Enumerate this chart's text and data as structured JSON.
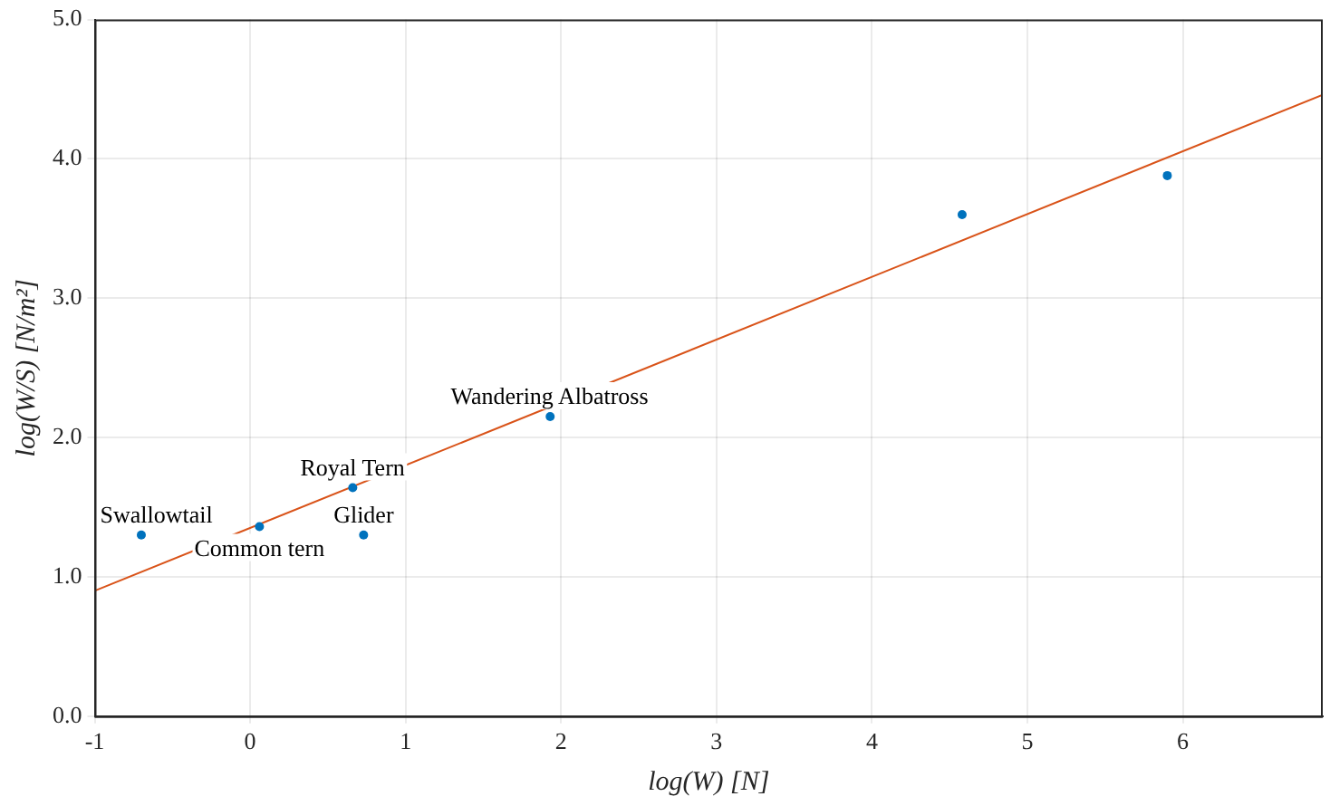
{
  "chart_data": {
    "type": "scatter",
    "xlabel": "log(W) [N]",
    "ylabel": "log(W/S) [N/m²]",
    "xlim": [
      -1,
      6.9
    ],
    "ylim": [
      0,
      5
    ],
    "xticks": [
      -1,
      0,
      1,
      2,
      3,
      4,
      5,
      6
    ],
    "yticks": [
      {
        "value": 0,
        "label": "0.0"
      },
      {
        "value": 1,
        "label": "1.0"
      },
      {
        "value": 2,
        "label": "2.0"
      },
      {
        "value": 3,
        "label": "3.0"
      },
      {
        "value": 4,
        "label": "4.0"
      },
      {
        "value": 5,
        "label": "5.0"
      }
    ],
    "grid": true,
    "legend": false,
    "marker": "circle",
    "series": [
      {
        "type": "scatter",
        "color": "#0072bd",
        "x": [
          -0.7,
          0.06,
          0.66,
          0.73,
          1.93,
          4.58,
          5.9
        ],
        "values": [
          1.3,
          1.36,
          1.64,
          1.3,
          2.15,
          3.6,
          3.88
        ]
      },
      {
        "type": "line",
        "color": "#d95319",
        "x": [
          -1,
          6.9
        ],
        "values": [
          0.9,
          4.46
        ],
        "marker": "none",
        "line_style": "solid"
      }
    ],
    "annotations": [
      {
        "text": "Swallowtail",
        "x": -0.7,
        "y": 1.3
      },
      {
        "text": "Common tern",
        "x": 0.06,
        "y": 1.36
      },
      {
        "text": "Royal Tern",
        "x": 0.66,
        "y": 1.64
      },
      {
        "text": "Glider",
        "x": 0.73,
        "y": 1.3
      },
      {
        "text": "Wandering Albatross",
        "x": 1.93,
        "y": 2.15
      }
    ]
  }
}
